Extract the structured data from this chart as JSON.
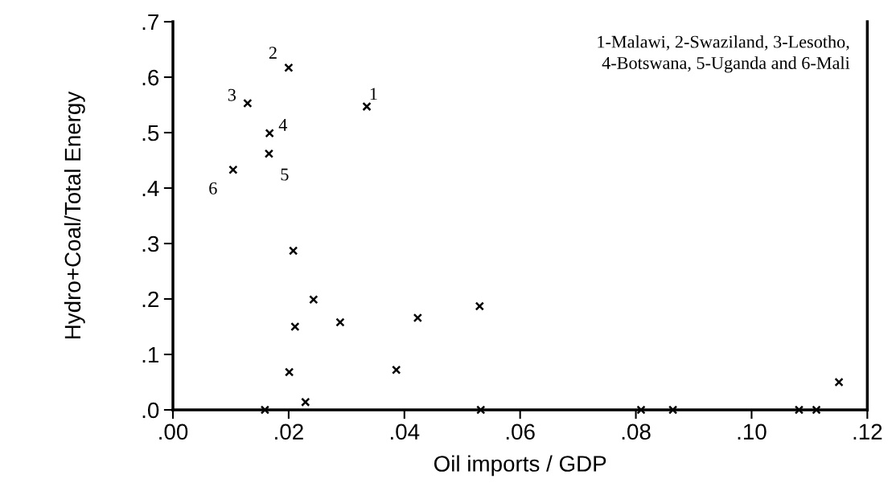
{
  "chart_data": {
    "type": "scatter",
    "xlabel": "Oil imports / GDP",
    "ylabel": "Hydro+Coal/Total Energy",
    "x": [
      0.0335,
      0.02,
      0.0129,
      0.0167,
      0.0166,
      0.0104,
      0.0208,
      0.0243,
      0.0211,
      0.0289,
      0.0201,
      0.0229,
      0.0159,
      0.0386,
      0.0423,
      0.053,
      0.1151,
      0.0532,
      0.0809,
      0.0864,
      0.1082,
      0.1112
    ],
    "values": [
      0.547,
      0.617,
      0.553,
      0.499,
      0.462,
      0.433,
      0.287,
      0.199,
      0.15,
      0.158,
      0.068,
      0.014,
      0.0,
      0.072,
      0.166,
      0.187,
      0.05,
      0.0,
      0.0,
      0.0,
      0.0,
      0.0
    ],
    "color": "#000000",
    "marker": "cross",
    "xlim": [
      0,
      0.12
    ],
    "ylim": [
      0,
      0.7
    ],
    "xticks": [
      {
        "value": 0,
        "label": ".00"
      },
      {
        "value": 0.02,
        "label": ".02"
      },
      {
        "value": 0.04,
        "label": ".04"
      },
      {
        "value": 0.06,
        "label": ".06"
      },
      {
        "value": 0.08,
        "label": ".08"
      },
      {
        "value": 0.1,
        "label": ".10"
      },
      {
        "value": 0.12,
        "label": ".12"
      }
    ],
    "yticks": [
      {
        "value": 0,
        "label": ".0"
      },
      {
        "value": 0.1,
        "label": ".1"
      },
      {
        "value": 0.2,
        "label": ".2"
      },
      {
        "value": 0.3,
        "label": ".3"
      },
      {
        "value": 0.4,
        "label": ".4"
      },
      {
        "value": 0.5,
        "label": ".5"
      },
      {
        "value": 0.6,
        "label": ".6"
      },
      {
        "value": 0.7,
        "label": ".7"
      }
    ],
    "grid": false,
    "annotations": [
      {
        "text": "1",
        "x": 0.0335,
        "y": 0.547
      },
      {
        "text": "2",
        "x": 0.02,
        "y": 0.617
      },
      {
        "text": "3",
        "x": 0.0129,
        "y": 0.553
      },
      {
        "text": "4",
        "x": 0.0167,
        "y": 0.499
      },
      {
        "text": "5",
        "x": 0.0166,
        "y": 0.462
      },
      {
        "text": "6",
        "x": 0.0104,
        "y": 0.433
      },
      "1-Malawi, 2-Swaziland, 3-Lesotho,\n4-Botswana, 5-Uganda and 6-Mali"
    ]
  }
}
